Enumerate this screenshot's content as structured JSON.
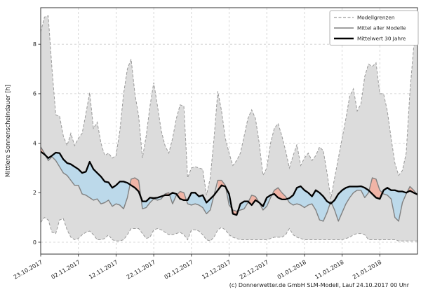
{
  "chart": {
    "ylabel": "Mittlere Sonnenscheindauer [h]",
    "footer": "(c) Donnerwetter.de GmbH SLM-Modell, Lauf 24.10.2017 00 Uhr",
    "legend": {
      "items": [
        {
          "label": "Modellgrenzen",
          "style": "dashed-gray"
        },
        {
          "label": "Mittel aller Modelle",
          "style": "solid-gray"
        },
        {
          "label": "Mittelwert 30 Jahre",
          "style": "solid-black"
        }
      ]
    },
    "colors": {
      "band_fill": "#dcdcdc",
      "envelope_edge": "#999999",
      "model_mean_line": "#808080",
      "mean30_line": "#000000",
      "above_normal_fill": "#f0b4a6",
      "below_normal_fill": "#bcd9ea",
      "grid": "#cccccc",
      "spine": "#333333",
      "text": "#1a1a1a"
    }
  },
  "chart_data": {
    "type": "line",
    "title": "",
    "xlabel": "",
    "ylabel": "Mittlere Sonnenscheindauer [h]",
    "x_unit": "days, day 0 = 23.10.2017",
    "xlim_days": [
      0,
      100
    ],
    "ylim": [
      -0.5,
      9.5
    ],
    "grid": true,
    "legend_position": "top-right",
    "x_tick_days": [
      0,
      10,
      20,
      30,
      40,
      50,
      60,
      70,
      80,
      90
    ],
    "x_tick_labels": [
      "23.10.2017",
      "02.11.2017",
      "12.11.2017",
      "22.11.2017",
      "02.12.2017",
      "12.12.2017",
      "22.12.2017",
      "01.01.2018",
      "11.01.2018",
      "21.01.2018"
    ],
    "y_ticks": [
      0,
      2,
      4,
      6,
      8
    ],
    "series": [
      {
        "name": "Modellgrenzen (obere Grenze)",
        "values": [
          8.5,
          9.1,
          9.15,
          7.0,
          5.15,
          5.1,
          4.3,
          3.9,
          4.4,
          3.9,
          4.2,
          4.4,
          5.2,
          6.05,
          4.6,
          4.85,
          4.0,
          3.5,
          3.6,
          3.4,
          3.5,
          4.5,
          6.0,
          7.0,
          7.4,
          6.0,
          5.1,
          3.4,
          4.3,
          5.5,
          6.45,
          5.5,
          4.5,
          3.9,
          3.6,
          4.2,
          5.0,
          5.55,
          5.5,
          2.6,
          3.0,
          3.05,
          3.0,
          2.95,
          1.9,
          2.6,
          4.2,
          6.1,
          5.3,
          4.2,
          3.6,
          3.1,
          3.3,
          3.6,
          4.3,
          5.0,
          5.35,
          5.0,
          4.0,
          2.7,
          3.0,
          4.0,
          4.6,
          4.8,
          4.3,
          3.7,
          3.0,
          3.5,
          3.95,
          3.1,
          3.4,
          3.6,
          3.3,
          3.5,
          3.85,
          3.7,
          2.8,
          1.75,
          2.6,
          3.4,
          4.2,
          5.0,
          5.9,
          6.2,
          5.3,
          5.6,
          6.7,
          7.2,
          7.1,
          7.25,
          6.0,
          6.0,
          5.3,
          4.2,
          3.2,
          2.7,
          2.9,
          3.6,
          6.1,
          7.9,
          8.3
        ]
      },
      {
        "name": "Modellgrenzen (untere Grenze)",
        "values": [
          0.8,
          1.0,
          0.9,
          0.4,
          0.35,
          0.9,
          0.95,
          0.5,
          0.2,
          0.1,
          0.15,
          0.3,
          0.4,
          0.45,
          0.3,
          0.1,
          0.1,
          0.15,
          0.3,
          0.1,
          0.05,
          0.05,
          0.1,
          0.3,
          0.55,
          0.55,
          0.55,
          0.35,
          0.15,
          0.2,
          0.5,
          0.55,
          0.5,
          0.4,
          0.3,
          0.3,
          0.35,
          0.4,
          0.3,
          0.1,
          0.5,
          0.5,
          0.45,
          0.3,
          0.1,
          0.05,
          0.2,
          0.5,
          0.6,
          0.5,
          0.3,
          0.2,
          0.15,
          0.1,
          0.1,
          0.1,
          0.1,
          0.1,
          0.1,
          0.1,
          0.1,
          0.15,
          0.2,
          0.2,
          0.2,
          0.3,
          0.55,
          0.3,
          0.2,
          0.15,
          0.1,
          0.1,
          0.1,
          0.1,
          0.1,
          0.1,
          0.1,
          0.1,
          0.1,
          0.1,
          0.1,
          0.15,
          0.2,
          0.3,
          0.35,
          0.35,
          0.3,
          0.1,
          0.1,
          0.1,
          0.1,
          0.1,
          0.1,
          0.1,
          0.1,
          0.05,
          0.05,
          0.05,
          0.05,
          0.05,
          0.05
        ]
      },
      {
        "name": "Mittel aller Modelle",
        "values": [
          3.85,
          3.6,
          3.3,
          3.45,
          3.3,
          3.05,
          2.8,
          2.7,
          2.5,
          2.3,
          2.3,
          1.95,
          1.9,
          1.8,
          1.7,
          1.75,
          1.55,
          1.6,
          1.7,
          1.45,
          1.55,
          1.5,
          1.35,
          1.8,
          2.55,
          2.6,
          2.5,
          1.35,
          1.4,
          1.6,
          1.75,
          1.7,
          1.75,
          1.95,
          2.0,
          1.55,
          1.9,
          2.05,
          2.0,
          1.55,
          1.5,
          1.55,
          1.5,
          1.4,
          1.15,
          1.3,
          1.9,
          2.5,
          2.5,
          2.3,
          1.5,
          1.3,
          1.25,
          1.3,
          1.35,
          1.6,
          1.9,
          1.85,
          1.6,
          1.3,
          1.45,
          1.8,
          2.1,
          2.2,
          2.0,
          1.85,
          1.6,
          1.5,
          1.55,
          1.5,
          1.4,
          1.5,
          1.55,
          1.3,
          0.9,
          0.85,
          1.2,
          1.65,
          1.3,
          0.85,
          1.2,
          1.55,
          1.8,
          2.0,
          2.1,
          2.1,
          1.8,
          2.0,
          2.6,
          2.55,
          2.1,
          1.95,
          1.9,
          1.75,
          1.0,
          0.85,
          1.6,
          1.95,
          2.25,
          2.1,
          1.9
        ]
      },
      {
        "name": "Mittelwert 30 Jahre",
        "values": [
          3.66,
          3.55,
          3.4,
          3.5,
          3.62,
          3.6,
          3.35,
          3.2,
          3.15,
          3.05,
          2.95,
          2.8,
          2.85,
          3.25,
          2.95,
          2.8,
          2.65,
          2.45,
          2.42,
          2.2,
          2.3,
          2.45,
          2.45,
          2.4,
          2.3,
          2.2,
          2.05,
          1.65,
          1.65,
          1.8,
          1.78,
          1.8,
          1.85,
          1.9,
          1.9,
          2.0,
          1.95,
          1.75,
          1.7,
          1.7,
          2.0,
          2.0,
          1.85,
          1.9,
          1.6,
          1.75,
          1.9,
          2.1,
          2.3,
          2.25,
          1.95,
          1.15,
          1.1,
          1.55,
          1.65,
          1.65,
          1.5,
          1.7,
          1.6,
          1.45,
          1.8,
          1.9,
          1.95,
          1.8,
          1.73,
          1.73,
          1.78,
          1.9,
          2.2,
          2.26,
          2.1,
          2.0,
          1.85,
          2.1,
          2.0,
          1.85,
          1.65,
          1.56,
          1.7,
          1.95,
          2.1,
          2.2,
          2.25,
          2.25,
          2.25,
          2.26,
          2.2,
          2.1,
          1.95,
          1.8,
          1.75,
          2.1,
          2.2,
          2.1,
          2.1,
          2.05,
          2.05,
          2.0,
          2.08,
          2.0,
          1.93
        ]
      }
    ]
  }
}
